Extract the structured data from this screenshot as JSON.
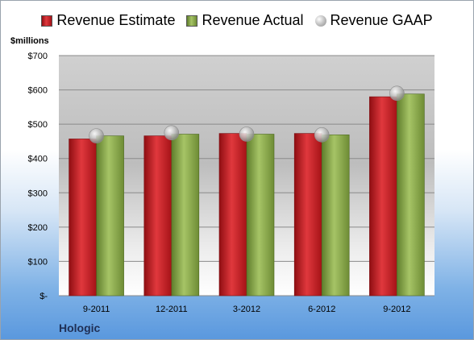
{
  "colors": {
    "estimate": "#c8161d",
    "actual": "#8aab4a",
    "gaap": "#b0b0b0"
  },
  "legend": {
    "estimate": "Revenue Estimate",
    "actual": "Revenue Actual",
    "gaap": "Revenue GAAP"
  },
  "unit_label": "$millions",
  "company": "Hologic",
  "chart_data": {
    "type": "bar",
    "title": "",
    "xlabel": "",
    "ylabel": "$millions",
    "categories": [
      "9-2011",
      "12-2011",
      "3-2012",
      "6-2012",
      "9-2012"
    ],
    "series": [
      {
        "name": "Revenue Estimate",
        "values": [
          457,
          466,
          473,
          473,
          580
        ]
      },
      {
        "name": "Revenue Actual",
        "values": [
          466,
          471,
          471,
          469,
          588
        ]
      },
      {
        "name": "Revenue GAAP",
        "values": [
          466,
          475,
          471,
          469,
          590
        ]
      }
    ],
    "ylim": [
      0,
      700
    ],
    "yticks": [
      0,
      100,
      200,
      300,
      400,
      500,
      600,
      700
    ],
    "ytick_labels": [
      "$-",
      "$100",
      "$200",
      "$300",
      "$400",
      "$500",
      "$600",
      "$700"
    ],
    "grid": true,
    "legend_position": "top"
  }
}
